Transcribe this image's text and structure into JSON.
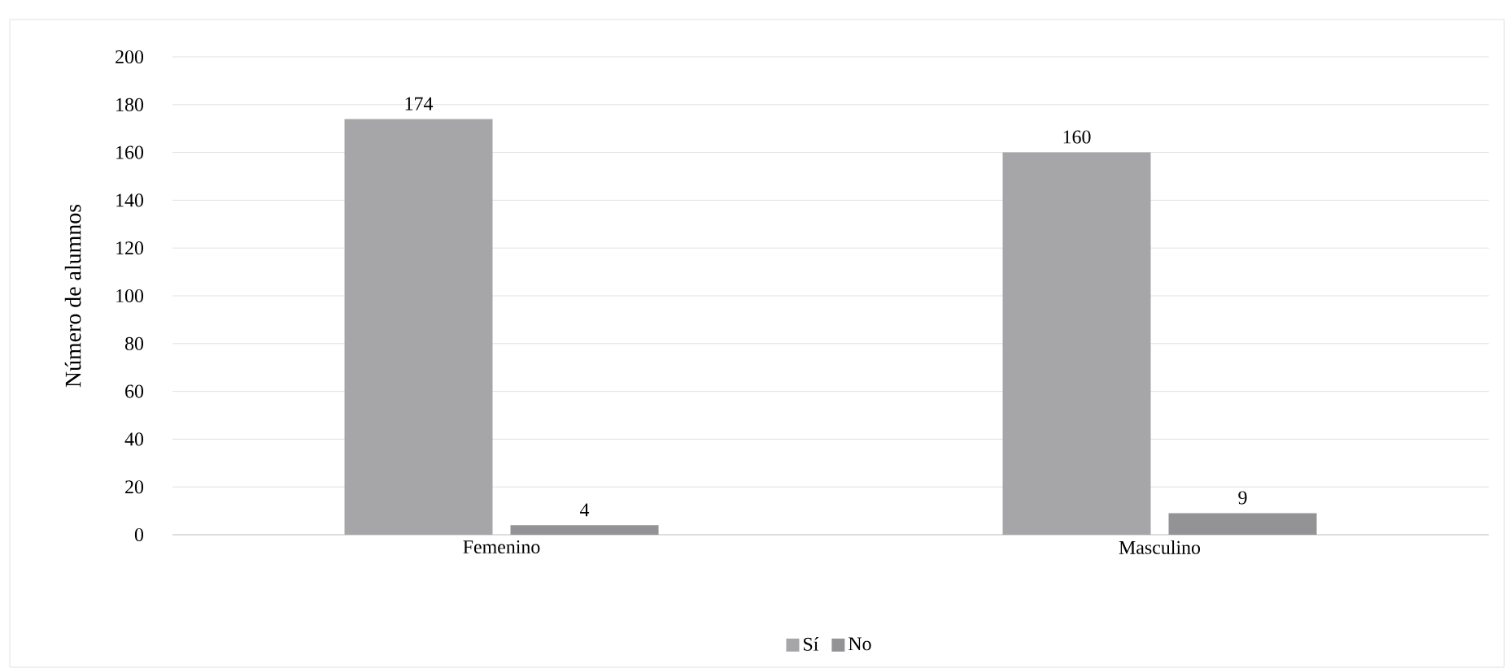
{
  "chart_data": {
    "type": "bar",
    "ylabel": "Número de alumnos",
    "categories": [
      "Femenino",
      "Masculino"
    ],
    "series": [
      {
        "name": "Sí",
        "color": "#a6a6a8",
        "values": [
          174,
          160
        ]
      },
      {
        "name": "No",
        "color": "#939395",
        "values": [
          4,
          9
        ]
      }
    ],
    "ylim": [
      0,
      200
    ],
    "yticks": [
      0,
      20,
      40,
      60,
      80,
      100,
      120,
      140,
      160,
      180,
      200
    ],
    "grid": "y",
    "legend": "bottom",
    "data_labels": true
  }
}
